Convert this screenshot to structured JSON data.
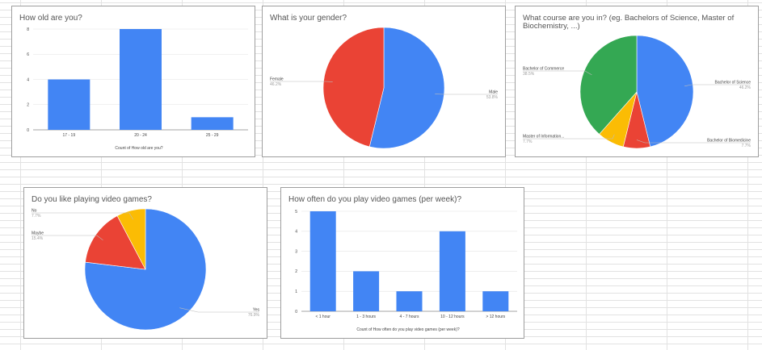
{
  "colors": {
    "blue": "#4285f4",
    "red": "#ea4335",
    "yellow": "#fbbc04",
    "green": "#34a853"
  },
  "chart_data": [
    {
      "id": "age",
      "type": "bar",
      "title": "How old are you?",
      "categories": [
        "17 - 19",
        "20 - 24",
        "25 - 29"
      ],
      "values": [
        4,
        8,
        1
      ],
      "ylim": [
        0,
        8
      ],
      "yticks": [
        "0",
        "2",
        "4",
        "6",
        "8"
      ],
      "xlabel": "Count of How old are you?",
      "ylabel": "",
      "grid": true
    },
    {
      "id": "gender",
      "type": "pie",
      "title": "What is your gender?",
      "slices": [
        {
          "label": "Male",
          "value": 53.8,
          "pct": "53.8%",
          "color": "blue"
        },
        {
          "label": "Female",
          "value": 46.2,
          "pct": "46.2%",
          "color": "red"
        }
      ]
    },
    {
      "id": "course",
      "type": "pie",
      "title": [
        "What course are you in? (eg. Bachelors of Science, Master of",
        "Biochemistry, ...)"
      ],
      "slices": [
        {
          "label": "Bachelor of Science",
          "value": 46.2,
          "pct": "46.2%",
          "color": "blue"
        },
        {
          "label": "Bachelor of Biomedicine",
          "value": 7.7,
          "pct": "7.7%",
          "color": "red"
        },
        {
          "label": "Master of Information...",
          "value": 7.7,
          "pct": "7.7%",
          "color": "yellow"
        },
        {
          "label": "Bachelor of Commerce",
          "value": 38.5,
          "pct": "38.5%",
          "color": "green"
        }
      ]
    },
    {
      "id": "games",
      "type": "pie",
      "title": "Do you like playing video games?",
      "slices": [
        {
          "label": "Yes",
          "value": 76.9,
          "pct": "76.9%",
          "color": "blue"
        },
        {
          "label": "Maybe",
          "value": 15.4,
          "pct": "15.4%",
          "color": "red"
        },
        {
          "label": "No",
          "value": 7.7,
          "pct": "7.7%",
          "color": "yellow"
        }
      ]
    },
    {
      "id": "often",
      "type": "bar",
      "title": "How often do you play video games (per week)?",
      "categories": [
        "< 1 hour",
        "1 - 3 hours",
        "4 - 7 hours",
        "10 - 12 hours",
        "> 12 hours"
      ],
      "values": [
        5,
        2,
        1,
        4,
        1
      ],
      "ylim": [
        0,
        5
      ],
      "yticks": [
        "0",
        "1",
        "2",
        "3",
        "4",
        "5"
      ],
      "xlabel": "Count of How often do you play video games (per week)?",
      "ylabel": "",
      "grid": true
    }
  ]
}
